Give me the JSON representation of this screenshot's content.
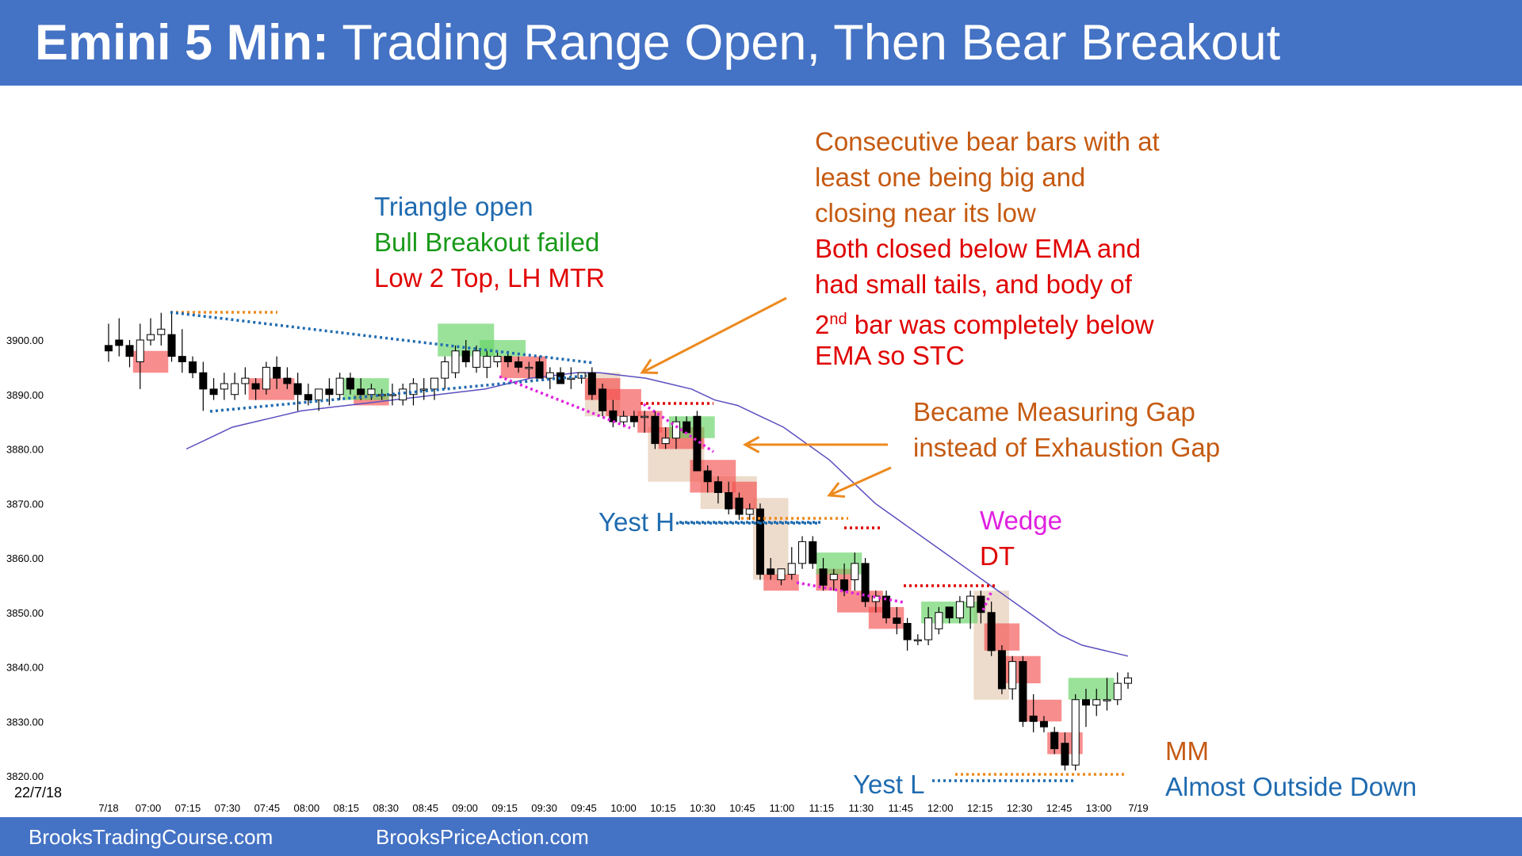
{
  "header": {
    "title_bold": "Emini 5 Min:",
    "title_rest": " Trading Range Open, Then Bear Breakout"
  },
  "footer": {
    "left": "BrooksTradingCourse.com",
    "right": "BrooksPriceAction.com"
  },
  "date_label": "22/7/18",
  "annotations": {
    "triangle": [
      "Triangle open",
      "Bull Breakout failed",
      "Low 2 Top, LH MTR"
    ],
    "consecutive": [
      "Consecutive bear bars with at",
      "least one being big and",
      "closing near its low"
    ],
    "both_closed": [
      "Both closed below EMA and",
      "had small tails, and body of"
    ],
    "second_bar_sup": "nd",
    "second_bar_pre": "2",
    "second_bar_rest": " bar was completely below",
    "ema_stc": "EMA so STC",
    "measuring_gap": [
      "Became Measuring Gap",
      "instead of Exhaustion Gap"
    ],
    "yest_h": "Yest H",
    "yest_l": "Yest L",
    "wedge": "Wedge",
    "dt": "DT",
    "mm": "MM",
    "outside_down": "Almost Outside Down"
  },
  "colors": {
    "header_bg": "#4472C4",
    "bear_highlight": "#F4706E",
    "bull_highlight": "#7AD87A",
    "ema": "#5B4FBF",
    "orange_line": "#ED8A1E",
    "blue_line": "#1F6BB0",
    "red_line": "#E00000",
    "magenta_line": "#E020E0"
  },
  "chart_data": {
    "type": "candlestick",
    "title": "Emini 5 Min: Trading Range Open, Then Bear Breakout",
    "y_ticks": [
      "3900.00",
      "3890.00",
      "3880.00",
      "3870.00",
      "3860.00",
      "3850.00",
      "3840.00",
      "3830.00",
      "3820.00"
    ],
    "ylim": [
      3817,
      3906
    ],
    "x_ticks": [
      "7/18",
      "07:00",
      "07:15",
      "07:30",
      "07:45",
      "08:00",
      "08:15",
      "08:30",
      "08:45",
      "09:00",
      "09:15",
      "09:30",
      "09:45",
      "10:00",
      "10:15",
      "10:30",
      "10:45",
      "11:00",
      "11:15",
      "11:30",
      "11:45",
      "12:00",
      "12:15",
      "12:30",
      "12:45",
      "13:00",
      "7/19"
    ],
    "bars": [
      [
        3899,
        3903,
        3896,
        3898
      ],
      [
        3900,
        3904,
        3897,
        3899
      ],
      [
        3899,
        3900,
        3895,
        3897
      ],
      [
        3896,
        3903,
        3891,
        3900
      ],
      [
        3900,
        3904,
        3899,
        3901
      ],
      [
        3901,
        3905,
        3899,
        3902
      ],
      [
        3901,
        3905,
        3896,
        3897
      ],
      [
        3897,
        3902,
        3894,
        3896
      ],
      [
        3896,
        3897,
        3893,
        3894
      ],
      [
        3894,
        3896,
        3887,
        3891
      ],
      [
        3891,
        3893,
        3889,
        3890
      ],
      [
        3891,
        3894,
        3889,
        3892
      ],
      [
        3890,
        3894,
        3889,
        3892
      ],
      [
        3892,
        3895,
        3890,
        3893
      ],
      [
        3892,
        3893,
        3889,
        3891
      ],
      [
        3891,
        3896,
        3890,
        3895
      ],
      [
        3895,
        3897,
        3891,
        3893
      ],
      [
        3893,
        3895,
        3891,
        3892
      ],
      [
        3892,
        3894,
        3887,
        3890
      ],
      [
        3890,
        3892,
        3888,
        3889
      ],
      [
        3889,
        3891,
        3887,
        3891
      ],
      [
        3891,
        3893,
        3888,
        3890
      ],
      [
        3890,
        3894,
        3889,
        3893
      ],
      [
        3893,
        3894,
        3890,
        3891
      ],
      [
        3891,
        3893,
        3889,
        3890
      ],
      [
        3890,
        3892,
        3889,
        3891
      ],
      [
        3890,
        3891,
        3889,
        3890
      ],
      [
        3890,
        3892,
        3888,
        3890
      ],
      [
        3889,
        3892,
        3888,
        3891
      ],
      [
        3890,
        3893,
        3888,
        3892
      ],
      [
        3891,
        3893,
        3889,
        3891
      ],
      [
        3891,
        3893,
        3889,
        3893
      ],
      [
        3893,
        3897,
        3891,
        3896
      ],
      [
        3894,
        3899,
        3893,
        3898
      ],
      [
        3898,
        3900,
        3895,
        3896
      ],
      [
        3895,
        3899,
        3894,
        3898
      ],
      [
        3895,
        3898,
        3893,
        3897
      ],
      [
        3896,
        3898,
        3895,
        3897
      ],
      [
        3897,
        3898,
        3895,
        3896
      ],
      [
        3896,
        3897,
        3894,
        3895
      ],
      [
        3895,
        3896,
        3893,
        3895
      ],
      [
        3896,
        3897,
        3893,
        3893
      ],
      [
        3893,
        3895,
        3891,
        3894
      ],
      [
        3894,
        3895,
        3892,
        3892
      ],
      [
        3893,
        3895,
        3891,
        3893
      ],
      [
        3893,
        3894,
        3892,
        3894
      ],
      [
        3894,
        3895,
        3889,
        3890
      ],
      [
        3891,
        3892,
        3886,
        3887
      ],
      [
        3887,
        3889,
        3884,
        3885
      ],
      [
        3885,
        3887,
        3884,
        3886
      ],
      [
        3886,
        3887,
        3884,
        3885
      ],
      [
        3886,
        3887,
        3883,
        3886
      ],
      [
        3886,
        3887,
        3880,
        3881
      ],
      [
        3881,
        3884,
        3880,
        3882
      ],
      [
        3882,
        3886,
        3880,
        3885
      ],
      [
        3885,
        3886,
        3883,
        3883
      ],
      [
        3886,
        3887,
        3876,
        3876
      ],
      [
        3876,
        3877,
        3872,
        3874
      ],
      [
        3874,
        3875,
        3870,
        3872
      ],
      [
        3872,
        3874,
        3868,
        3869
      ],
      [
        3871,
        3872,
        3867,
        3868
      ],
      [
        3868,
        3870,
        3867,
        3869
      ],
      [
        3869,
        3870,
        3856,
        3857
      ],
      [
        3858,
        3860,
        3856,
        3857
      ],
      [
        3856,
        3858,
        3855,
        3858
      ],
      [
        3857,
        3862,
        3856,
        3859
      ],
      [
        3859,
        3864,
        3858,
        3863
      ],
      [
        3863,
        3864,
        3858,
        3859
      ],
      [
        3858,
        3860,
        3854,
        3855
      ],
      [
        3856,
        3858,
        3854,
        3857
      ],
      [
        3856,
        3859,
        3853,
        3854
      ],
      [
        3856,
        3861,
        3854,
        3859
      ],
      [
        3859,
        3860,
        3851,
        3852
      ],
      [
        3852,
        3854,
        3850,
        3853
      ],
      [
        3853,
        3854,
        3848,
        3849
      ],
      [
        3849,
        3851,
        3846,
        3848
      ],
      [
        3848,
        3849,
        3843,
        3845
      ],
      [
        3845,
        3846,
        3844,
        3845
      ],
      [
        3845,
        3851,
        3844,
        3849
      ],
      [
        3847,
        3851,
        3846,
        3850
      ],
      [
        3851,
        3851,
        3848,
        3849
      ],
      [
        3849,
        3853,
        3848,
        3852
      ],
      [
        3851,
        3854,
        3847,
        3853
      ],
      [
        3853,
        3854,
        3848,
        3850
      ],
      [
        3850,
        3852,
        3842,
        3843
      ],
      [
        3843,
        3844,
        3835,
        3836
      ],
      [
        3836,
        3842,
        3834,
        3841
      ],
      [
        3841,
        3842,
        3829,
        3830
      ],
      [
        3831,
        3835,
        3828,
        3830
      ],
      [
        3830,
        3831,
        3828,
        3829
      ],
      [
        3828,
        3829,
        3824,
        3825
      ],
      [
        3826,
        3828,
        3821,
        3822
      ],
      [
        3822,
        3835,
        3821,
        3834
      ],
      [
        3834,
        3836,
        3829,
        3833
      ],
      [
        3833,
        3836,
        3831,
        3834
      ],
      [
        3834,
        3838,
        3832,
        3834
      ],
      [
        3834,
        3839,
        3833,
        3837
      ],
      [
        3837,
        3839,
        3836,
        3838
      ]
    ],
    "ema": [
      3880,
      3882,
      3884,
      3885,
      3886,
      3887,
      3887.5,
      3888,
      3888.5,
      3889,
      3889.5,
      3890,
      3890.5,
      3891,
      3892,
      3893,
      3893.5,
      3894,
      3894,
      3893.5,
      3893,
      3892,
      3891,
      3889,
      3888,
      3886,
      3884,
      3881,
      3878,
      3874,
      3870,
      3867,
      3864,
      3861,
      3858,
      3855,
      3852,
      3849,
      3846,
      3844,
      3843,
      3842
    ]
  }
}
